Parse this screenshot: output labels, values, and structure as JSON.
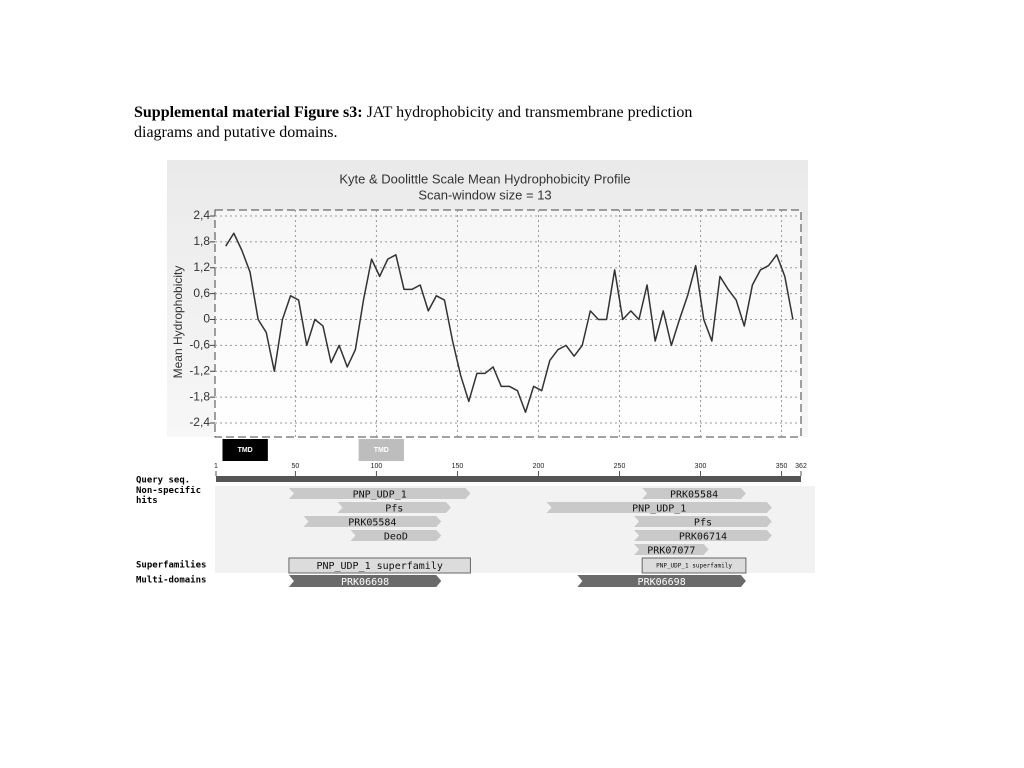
{
  "caption": {
    "bold": "Supplemental material Figure s3:",
    "text": "JAT hydrophobicity and transmembrane prediction diagrams and putative domains."
  },
  "chart_data": {
    "type": "line",
    "title": "Kyte & Doolittle Scale Mean Hydrophobicity Profile",
    "subtitle": "Scan-window size = 13",
    "y_label": "Mean  Hydrophobicity",
    "x": [
      7,
      12,
      17,
      22,
      27,
      32,
      37,
      42,
      47,
      52,
      57,
      62,
      67,
      72,
      77,
      82,
      87,
      92,
      97,
      102,
      107,
      112,
      117,
      122,
      127,
      132,
      137,
      142,
      147,
      152,
      157,
      162,
      167,
      172,
      177,
      182,
      187,
      192,
      197,
      202,
      207,
      212,
      217,
      222,
      227,
      232,
      237,
      242,
      247,
      252,
      257,
      262,
      267,
      272,
      277,
      282,
      287,
      292,
      297,
      302,
      307,
      312,
      317,
      322,
      327,
      332,
      337,
      342,
      347,
      352,
      357
    ],
    "series": [
      {
        "color": "#333333",
        "values": [
          1.7,
          2.0,
          1.6,
          1.1,
          0,
          -0.3,
          -1.2,
          0,
          0.55,
          0.45,
          -0.6,
          0,
          -0.15,
          -1.0,
          -0.6,
          -1.1,
          -0.7,
          0.45,
          1.4,
          1.0,
          1.4,
          1.5,
          0.7,
          0.7,
          0.8,
          0.2,
          0.55,
          0.45,
          -0.5,
          -1.3,
          -1.9,
          -1.25,
          -1.25,
          -1.1,
          -1.55,
          -1.55,
          -1.65,
          -2.15,
          -1.55,
          -1.65,
          -0.95,
          -0.7,
          -0.6,
          -0.85,
          -0.6,
          0.2,
          0,
          0,
          1.15,
          0,
          0.2,
          0,
          0.8,
          -0.5,
          0.2,
          -0.6,
          0,
          0.55,
          1.25,
          0,
          -0.5,
          1.0,
          0.7,
          0.45,
          -0.15,
          0.8,
          1.15,
          1.25,
          1.5,
          1.0,
          0
        ]
      }
    ],
    "xlim": [
      1,
      362
    ],
    "ylim": [
      -2.4,
      2.4
    ],
    "yticks": [
      {
        "value": 2.4,
        "label": "2,4"
      },
      {
        "value": 1.8,
        "label": "1,8"
      },
      {
        "value": 1.2,
        "label": "1,2"
      },
      {
        "value": 0.6,
        "label": "0,6"
      },
      0,
      {
        "value": -0.6,
        "label": "-0,6"
      },
      {
        "value": -1.2,
        "label": "-1,2"
      },
      {
        "value": -1.8,
        "label": "-1,8"
      },
      {
        "value": -2.4,
        "label": "-2,4"
      }
    ],
    "xticks": [
      1,
      50,
      100,
      150,
      200,
      250,
      300,
      350,
      362
    ],
    "grid": true
  },
  "tmd": [
    {
      "label": "TMD",
      "start": 5,
      "end": 33,
      "color": "#000000"
    },
    {
      "label": "TMD",
      "start": 89,
      "end": 117,
      "color": "#bdbdbd"
    }
  ],
  "domains": {
    "labels": {
      "query": "Query seq.",
      "hits": "Non-specific hits",
      "superfamilies": "Superfamilies",
      "multi": "Multi-domains"
    },
    "hits": [
      {
        "name": "PNP_UDP_1",
        "start": 46,
        "end": 158
      },
      {
        "name": "PRK05584",
        "start": 264,
        "end": 328
      },
      {
        "name": "Pfs",
        "start": 76,
        "end": 146
      },
      {
        "name": "PNP_UDP_1",
        "start": 205,
        "end": 344
      },
      {
        "name": "PRK05584",
        "start": 55,
        "end": 140
      },
      {
        "name": "Pfs",
        "start": 259,
        "end": 344
      },
      {
        "name": "DeoD",
        "start": 84,
        "end": 140
      },
      {
        "name": "PRK06714",
        "start": 259,
        "end": 344
      },
      {
        "name": "PRK07077",
        "start": 259,
        "end": 305
      }
    ],
    "superfamilies": [
      {
        "name": "PNP_UDP_1 superfamily",
        "start": 46,
        "end": 158
      },
      {
        "name": "PNP_UDP_1 superfamily",
        "start": 264,
        "end": 328
      }
    ],
    "multi_domains": [
      {
        "name": "PRK06698",
        "start": 46,
        "end": 140
      },
      {
        "name": "PRK06698",
        "start": 224,
        "end": 328
      }
    ]
  }
}
